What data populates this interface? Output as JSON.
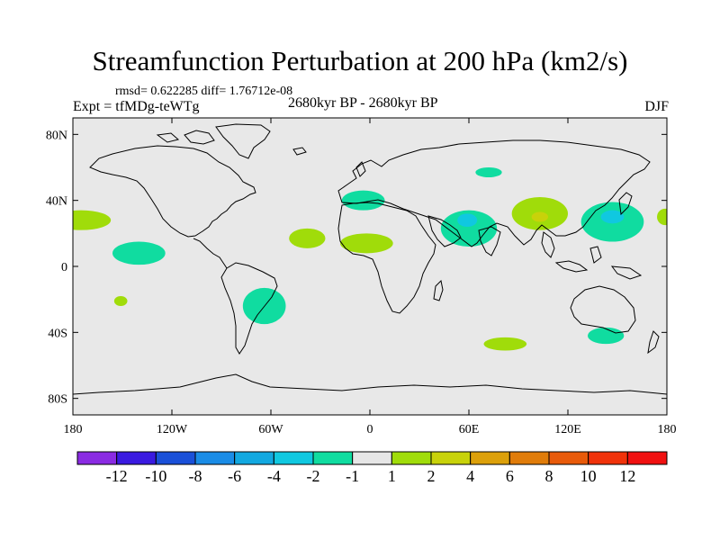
{
  "header": {
    "title": "Streamfunction Perturbation at 200 hPa (km2/s)",
    "stats": "rmsd= 0.622285 diff= 1.76712e-08",
    "experiment": "Expt = tfMDg-teWTg",
    "period": "2680kyr BP - 2680kyr BP",
    "season": "DJF"
  },
  "map": {
    "projection": "cylindrical equidistant",
    "lon_range": [
      -180,
      180
    ],
    "lat_range": [
      -90,
      90
    ],
    "background_color": "#e8e8e8",
    "lat_tick_labels": [
      {
        "lat": 80,
        "label": "80N"
      },
      {
        "lat": 40,
        "label": "40N"
      },
      {
        "lat": 0,
        "label": "0"
      },
      {
        "lat": -40,
        "label": "40S"
      },
      {
        "lat": -80,
        "label": "80S"
      }
    ],
    "lon_tick_labels": [
      {
        "lon": -180,
        "label": "180"
      },
      {
        "lon": -120,
        "label": "120W"
      },
      {
        "lon": -60,
        "label": "60W"
      },
      {
        "lon": 0,
        "label": "0"
      },
      {
        "lon": 60,
        "label": "60E"
      },
      {
        "lon": 120,
        "label": "120E"
      },
      {
        "lon": 180,
        "label": "180"
      }
    ]
  },
  "chart_data": {
    "type": "heatmap",
    "title": "Streamfunction Perturbation at 200 hPa (km2/s)",
    "units": "km2/s",
    "anomaly_regions": [
      {
        "lon": -175,
        "lat": 28,
        "rlon": 18,
        "rlat": 6,
        "level": "1 to 2"
      },
      {
        "lon": -140,
        "lat": 8,
        "rlon": 16,
        "rlat": 7,
        "level": "-2 to -1"
      },
      {
        "lon": -151,
        "lat": -21,
        "rlon": 4,
        "rlat": 3,
        "level": "1 to 2"
      },
      {
        "lon": -64,
        "lat": -24,
        "rlon": 13,
        "rlat": 11,
        "level": "-2 to -1"
      },
      {
        "lon": -38,
        "lat": 17,
        "rlon": 11,
        "rlat": 6,
        "level": "1 to 2"
      },
      {
        "lon": -4,
        "lat": 40,
        "rlon": 13,
        "rlat": 6,
        "level": "-2 to -1"
      },
      {
        "lon": -2,
        "lat": 14,
        "rlon": 16,
        "rlat": 6,
        "level": "1 to 2"
      },
      {
        "lon": 60,
        "lat": 23,
        "rlon": 17,
        "rlat": 11,
        "level": "-2 to -1"
      },
      {
        "lon": 59,
        "lat": 28,
        "rlon": 6,
        "rlat": 4,
        "level": "-4 to -2"
      },
      {
        "lon": 72,
        "lat": 57,
        "rlon": 8,
        "rlat": 3,
        "level": "-2 to -1"
      },
      {
        "lon": 103,
        "lat": 32,
        "rlon": 17,
        "rlat": 10,
        "level": "1 to 2"
      },
      {
        "lon": 103,
        "lat": 30,
        "rlon": 5,
        "rlat": 3,
        "level": "2 to 4"
      },
      {
        "lon": 147,
        "lat": 27,
        "rlon": 19,
        "rlat": 12,
        "level": "-2 to -1"
      },
      {
        "lon": 147,
        "lat": 30,
        "rlon": 7,
        "rlat": 4,
        "level": "-4 to -2"
      },
      {
        "lon": 179,
        "lat": 30,
        "rlon": 5,
        "rlat": 5,
        "level": "1 to 2"
      },
      {
        "lon": 82,
        "lat": -47,
        "rlon": 13,
        "rlat": 4,
        "level": "1 to 2"
      },
      {
        "lon": 143,
        "lat": -42,
        "rlon": 11,
        "rlat": 5,
        "level": "-2 to -1"
      }
    ],
    "colorbar": {
      "labels": [
        "-12",
        "-10",
        "-8",
        "-6",
        "-4",
        "-2",
        "-1",
        "1",
        "2",
        "4",
        "6",
        "8",
        "10",
        "12"
      ],
      "colors": [
        "#8a2be2",
        "#3a1ae0",
        "#1a50d8",
        "#1a8ce6",
        "#12a8e0",
        "#10c8e0",
        "#10dca0",
        "#e6e6e6",
        "#a0dc0a",
        "#c8d20a",
        "#dca00a",
        "#e07c0a",
        "#e85a0a",
        "#f0320a",
        "#f01010"
      ]
    }
  }
}
